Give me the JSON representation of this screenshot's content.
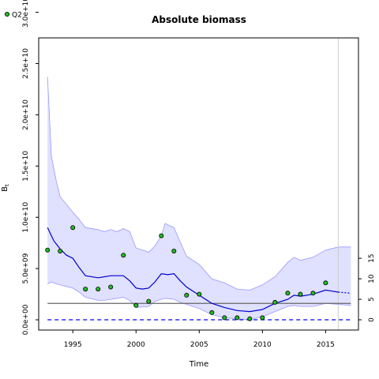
{
  "chart_data": {
    "type": "line",
    "title": "Absolute biomass",
    "xlabel": "Time",
    "ylabel": "B",
    "ylabel_sub": "t",
    "xlim": [
      1992.3,
      2017.6
    ],
    "ylim": [
      -1000000000.0,
      27500000000.0
    ],
    "x_ticks": [
      1995,
      2000,
      2005,
      2010,
      2015
    ],
    "x_tick_labels": [
      "1995",
      "2000",
      "2005",
      "2010",
      "2015"
    ],
    "y_ticks": [
      0,
      5000000000.0,
      10000000000.0,
      15000000000.0,
      20000000000.0,
      25000000000.0,
      30000000000.0
    ],
    "y_tick_labels": [
      "0.0e+00",
      "5.0e+09",
      "1.0e+10",
      "1.5e+10",
      "2.0e+10",
      "2.5e+10",
      "3.0e+10"
    ],
    "y2_ticks": [
      0,
      5,
      10,
      15
    ],
    "y2_tick_labels": [
      "0",
      "5",
      "10",
      "15"
    ],
    "y2_scale": 400000000.0,
    "vline_x": 2016.0,
    "hline_y": 1600000000.0,
    "hline_color": "#666666",
    "zero_line_color": "#0000ff",
    "series_color": "#0000cc",
    "band_fill": "#e0e0ff",
    "band_stroke": "#9999ff",
    "point_fill": "#22bb22",
    "legend": {
      "label": "Q2",
      "position": "top-left"
    },
    "series": [
      {
        "name": "Q2",
        "kind": "observations",
        "x": [
          1993.0,
          1994.0,
          1995.0,
          1996.0,
          1997.0,
          1998.0,
          1999.0,
          2000.0,
          2001.0,
          2002.0,
          2003.0,
          2004.0,
          2005.0,
          2006.0,
          2007.0,
          2008.0,
          2009.0,
          2010.0,
          2011.0,
          2012.0,
          2013.0,
          2014.0,
          2015.0
        ],
        "y": [
          6800000000.0,
          6700000000.0,
          9000000000.0,
          3000000000.0,
          3000000000.0,
          3200000000.0,
          6300000000.0,
          1400000000.0,
          1800000000.0,
          8200000000.0,
          6700000000.0,
          2400000000.0,
          2500000000.0,
          700000000.0,
          200000000.0,
          200000000.0,
          100000000.0,
          200000000.0,
          1700000000.0,
          2600000000.0,
          2500000000.0,
          2600000000.0,
          3600000000.0
        ]
      },
      {
        "name": "",
        "kind": "estimate",
        "x": [
          1993.0,
          1993.5,
          1994.0,
          1994.5,
          1995.0,
          1995.5,
          1996.0,
          1997.0,
          1998.0,
          1999.0,
          1999.5,
          2000.0,
          2000.5,
          2001.0,
          2001.5,
          2002.0,
          2002.5,
          2003.0,
          2003.5,
          2004.0,
          2005.0,
          2006.0,
          2007.0,
          2008.0,
          2009.0,
          2010.0,
          2011.0,
          2012.0,
          2012.5,
          2013.0,
          2014.0,
          2015.0,
          2015.5,
          2016.0
        ],
        "y": [
          9000000000.0,
          7700000000.0,
          6900000000.0,
          6300000000.0,
          6000000000.0,
          5100000000.0,
          4300000000.0,
          4100000000.0,
          4300000000.0,
          4300000000.0,
          3800000000.0,
          3100000000.0,
          3000000000.0,
          3100000000.0,
          3700000000.0,
          4500000000.0,
          4400000000.0,
          4500000000.0,
          3800000000.0,
          3200000000.0,
          2400000000.0,
          1600000000.0,
          1200000000.0,
          900000000.0,
          800000000.0,
          1000000000.0,
          1600000000.0,
          2000000000.0,
          2400000000.0,
          2300000000.0,
          2500000000.0,
          2900000000.0,
          2800000000.0,
          2700000000.0
        ]
      },
      {
        "name": "",
        "kind": "forecast",
        "x": [
          2016.0,
          2017.0
        ],
        "y": [
          2700000000.0,
          2600000000.0
        ]
      }
    ],
    "band": {
      "x": [
        1993.0,
        1993.3,
        1993.7,
        1994.0,
        1995.0,
        1995.5,
        1996.0,
        1997.0,
        1997.5,
        1998.0,
        1998.5,
        1999.0,
        1999.5,
        2000.0,
        2001.0,
        2001.5,
        2002.0,
        2002.3,
        2003.0,
        2003.5,
        2004.0,
        2005.0,
        2006.0,
        2007.0,
        2008.0,
        2009.0,
        2010.0,
        2011.0,
        2012.0,
        2012.5,
        2013.0,
        2014.0,
        2015.0,
        2016.0,
        2017.0
      ],
      "upper": [
        23700000000.0,
        16000000000.0,
        13500000000.0,
        12000000000.0,
        10500000000.0,
        9800000000.0,
        9000000000.0,
        8800000000.0,
        8600000000.0,
        8800000000.0,
        8600000000.0,
        8900000000.0,
        8600000000.0,
        7000000000.0,
        6600000000.0,
        7200000000.0,
        8200000000.0,
        9400000000.0,
        9000000000.0,
        7600000000.0,
        6200000000.0,
        5400000000.0,
        4000000000.0,
        3600000000.0,
        3000000000.0,
        2900000000.0,
        3400000000.0,
        4200000000.0,
        5600000000.0,
        6100000000.0,
        5800000000.0,
        6100000000.0,
        6800000000.0,
        7100000000.0,
        7100000000.0
      ],
      "lower": [
        3500000000.0,
        3700000000.0,
        3500000000.0,
        3400000000.0,
        3100000000.0,
        2700000000.0,
        2200000000.0,
        1900000000.0,
        1900000000.0,
        2000000000.0,
        2100000000.0,
        2200000000.0,
        1900000000.0,
        1200000000.0,
        1300000000.0,
        1800000000.0,
        2000000000.0,
        2100000000.0,
        2000000000.0,
        1700000000.0,
        1500000000.0,
        1100000000.0,
        500000000.0,
        200000000.0,
        100000000.0,
        0.0,
        300000000.0,
        800000000.0,
        1300000000.0,
        1400000000.0,
        1300000000.0,
        1300000000.0,
        1600000000.0,
        1500000000.0,
        1400000000.0
      ]
    }
  }
}
